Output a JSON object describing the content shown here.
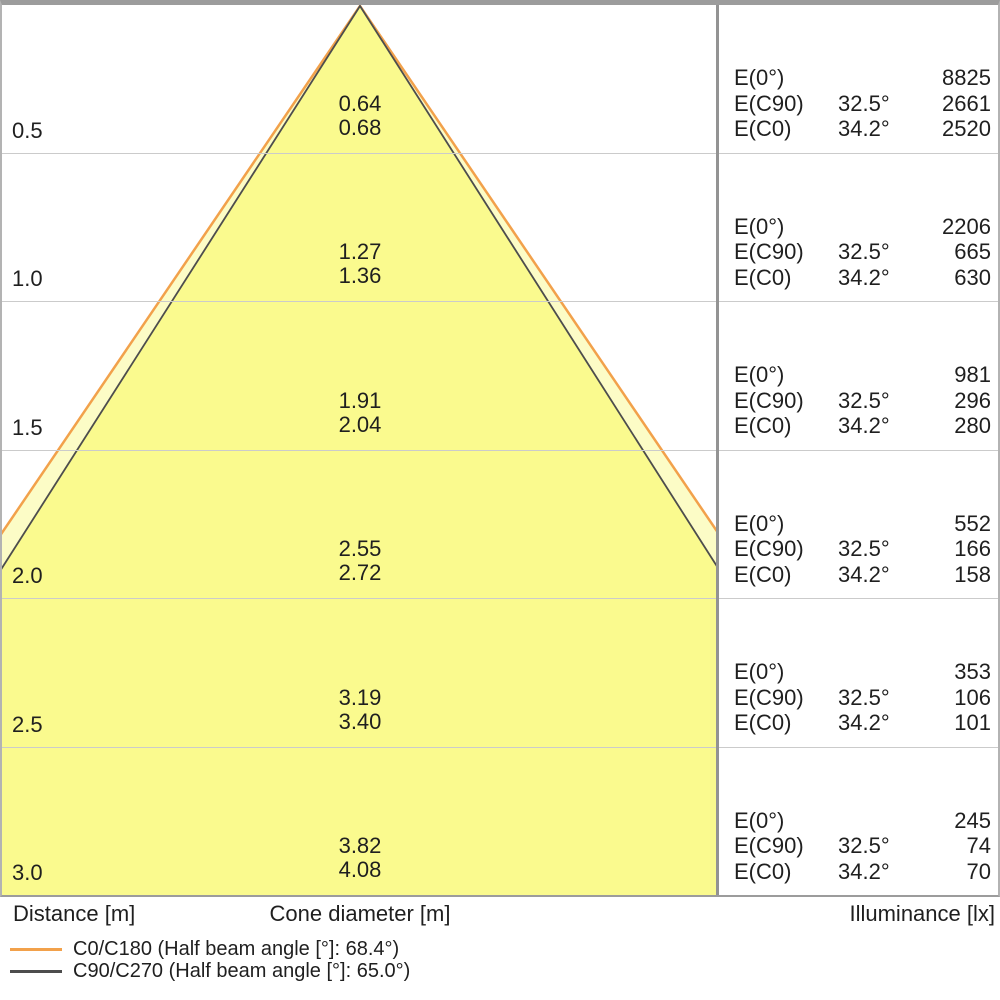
{
  "axis": {
    "distance_label": "Distance [m]",
    "cone_diameter_label": "Cone diameter [m]",
    "illuminance_label": "Illuminance [lx]"
  },
  "legend": {
    "items": [
      {
        "label": "C0/C180 (Half beam angle [°]: 68.4°)"
      },
      {
        "label": "C90/C270 (Half beam angle [°]: 65.0°)"
      }
    ]
  },
  "colors": {
    "c0_line": "#F2A14B",
    "c90_line": "#4D4D4D",
    "outer_cone_fill": "#FCFCC6",
    "inner_cone_fill": "#FAFA8E",
    "row_divider": "#cbcbcb",
    "frame_border": "#9c9c9c"
  },
  "chart_data": {
    "type": "cone-diagram",
    "title": "",
    "xlabel": "Cone diameter [m]",
    "ylabel_left": "Distance [m]",
    "ylabel_right": "Illuminance [lx]",
    "half_beam_angle_c0_deg": 68.4,
    "half_beam_angle_c90_deg": 65.0,
    "half_angle_c0_deg": 34.2,
    "half_angle_c90_deg": 32.5,
    "distance_m": [
      0.5,
      1.0,
      1.5,
      2.0,
      2.5,
      3.0
    ],
    "cone_diameter_c90_m": [
      0.64,
      1.27,
      1.91,
      2.55,
      3.19,
      3.82
    ],
    "cone_diameter_c0_m": [
      0.68,
      1.36,
      2.04,
      2.72,
      3.4,
      4.08
    ],
    "illuminance_e0_lx": [
      8825,
      2206,
      981,
      552,
      353,
      245
    ],
    "illuminance_ec90_lx": [
      2661,
      665,
      296,
      166,
      106,
      74
    ],
    "illuminance_ec0_lx": [
      2520,
      630,
      280,
      158,
      101,
      70
    ],
    "rows": [
      {
        "distance_m": "0.5",
        "cone_diameter_c90_m": "0.64",
        "cone_diameter_c0_m": "0.68",
        "e0_label": "E(0°)",
        "e0_lx": "8825",
        "ec90_label": "E(C90)",
        "ec90_angle": "32.5°",
        "ec90_lx": "2661",
        "ec0_label": "E(C0)",
        "ec0_angle": "34.2°",
        "ec0_lx": "2520"
      },
      {
        "distance_m": "1.0",
        "cone_diameter_c90_m": "1.27",
        "cone_diameter_c0_m": "1.36",
        "e0_label": "E(0°)",
        "e0_lx": "2206",
        "ec90_label": "E(C90)",
        "ec90_angle": "32.5°",
        "ec90_lx": "665",
        "ec0_label": "E(C0)",
        "ec0_angle": "34.2°",
        "ec0_lx": "630"
      },
      {
        "distance_m": "1.5",
        "cone_diameter_c90_m": "1.91",
        "cone_diameter_c0_m": "2.04",
        "e0_label": "E(0°)",
        "e0_lx": "981",
        "ec90_label": "E(C90)",
        "ec90_angle": "32.5°",
        "ec90_lx": "296",
        "ec0_label": "E(C0)",
        "ec0_angle": "34.2°",
        "ec0_lx": "280"
      },
      {
        "distance_m": "2.0",
        "cone_diameter_c90_m": "2.55",
        "cone_diameter_c0_m": "2.72",
        "e0_label": "E(0°)",
        "e0_lx": "552",
        "ec90_label": "E(C90)",
        "ec90_angle": "32.5°",
        "ec90_lx": "166",
        "ec0_label": "E(C0)",
        "ec0_angle": "34.2°",
        "ec0_lx": "158"
      },
      {
        "distance_m": "2.5",
        "cone_diameter_c90_m": "3.19",
        "cone_diameter_c0_m": "3.40",
        "e0_label": "E(0°)",
        "e0_lx": "353",
        "ec90_label": "E(C90)",
        "ec90_angle": "32.5°",
        "ec90_lx": "106",
        "ec0_label": "E(C0)",
        "ec0_angle": "34.2°",
        "ec0_lx": "101"
      },
      {
        "distance_m": "3.0",
        "cone_diameter_c90_m": "3.82",
        "cone_diameter_c0_m": "4.08",
        "e0_label": "E(0°)",
        "e0_lx": "245",
        "ec90_label": "E(C90)",
        "ec90_angle": "32.5°",
        "ec90_lx": "74",
        "ec0_label": "E(C0)",
        "ec0_angle": "34.2°",
        "ec0_lx": "70"
      }
    ]
  }
}
